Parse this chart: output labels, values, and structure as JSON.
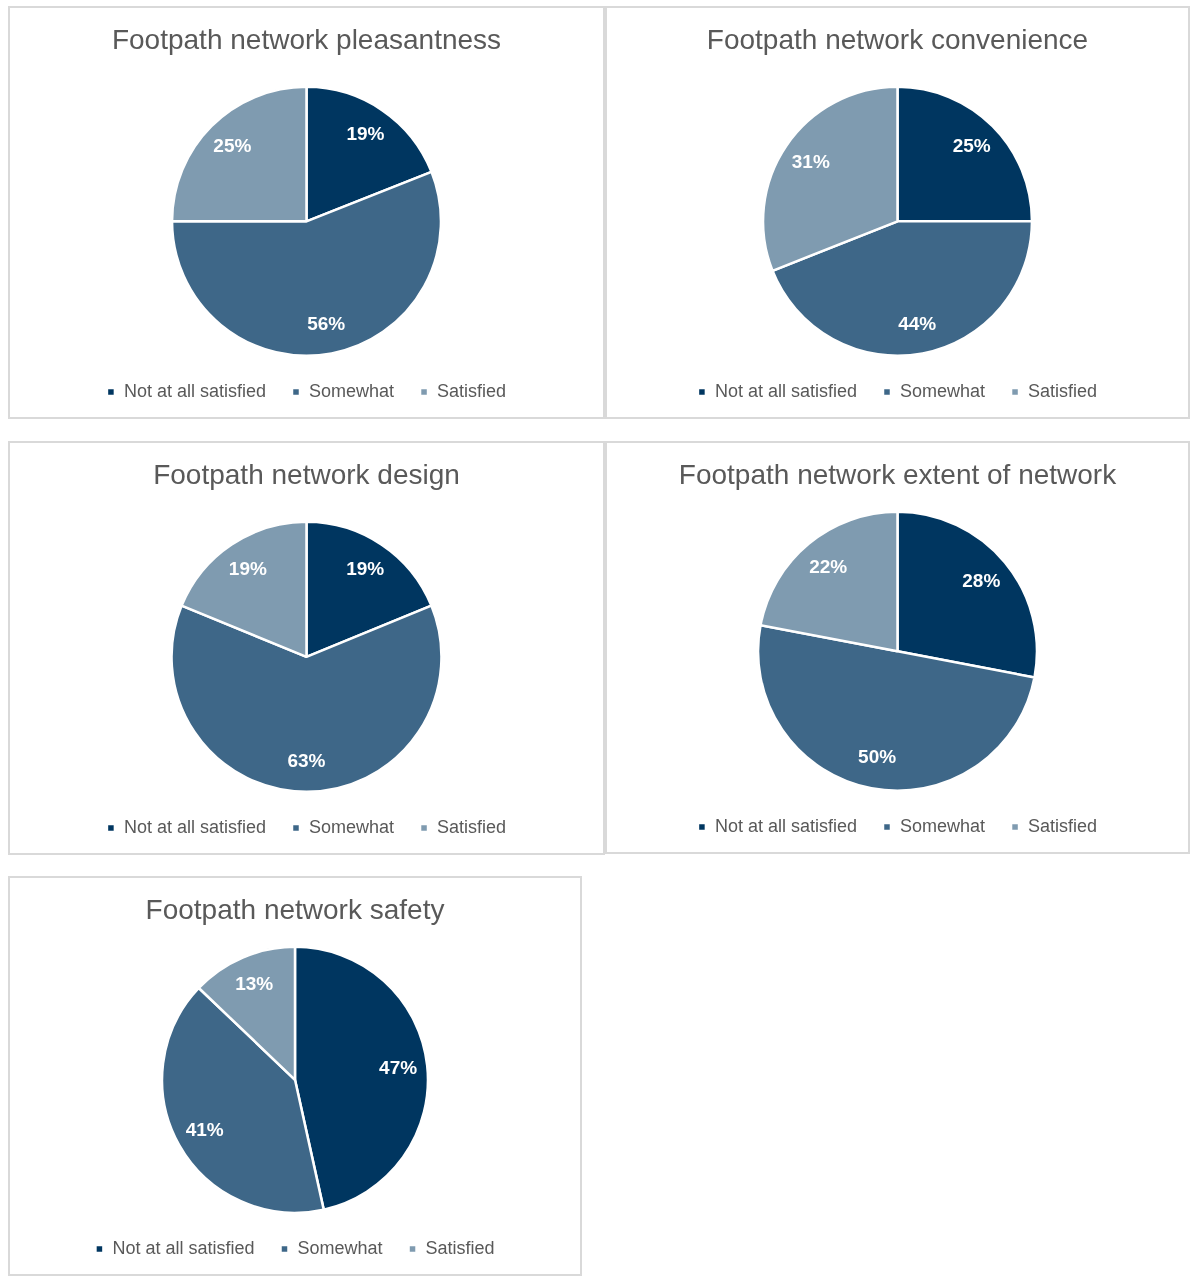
{
  "chart_data": [
    {
      "type": "pie",
      "title": "Footpath network pleasantness",
      "categories": [
        "Not at all satisfied",
        "Somewhat",
        "Satisfied"
      ],
      "values": [
        19,
        56,
        25
      ],
      "value_labels": [
        "19%",
        "56%",
        "25%"
      ],
      "colors": [
        "#003660",
        "#3e6788",
        "#7f9bb0"
      ],
      "legend": "bottom"
    },
    {
      "type": "pie",
      "title": "Footpath network convenience",
      "categories": [
        "Not at all satisfied",
        "Somewhat",
        "Satisfied"
      ],
      "values": [
        25,
        44,
        31
      ],
      "value_labels": [
        "25%",
        "44%",
        "31%"
      ],
      "colors": [
        "#003660",
        "#3e6788",
        "#7f9bb0"
      ],
      "legend": "bottom"
    },
    {
      "type": "pie",
      "title": "Footpath network design",
      "categories": [
        "Not at all satisfied",
        "Somewhat",
        "Satisfied"
      ],
      "values": [
        19,
        63,
        19
      ],
      "value_labels": [
        "19%",
        "63%",
        "19%"
      ],
      "colors": [
        "#003660",
        "#3e6788",
        "#7f9bb0"
      ],
      "legend": "bottom"
    },
    {
      "type": "pie",
      "title": "Footpath network extent of network",
      "categories": [
        "Not at all satisfied",
        "Somewhat",
        "Satisfied"
      ],
      "values": [
        28,
        50,
        22
      ],
      "value_labels": [
        "28%",
        "50%",
        "22%"
      ],
      "colors": [
        "#003660",
        "#3e6788",
        "#7f9bb0"
      ],
      "legend": "bottom"
    },
    {
      "type": "pie",
      "title": "Footpath network safety",
      "categories": [
        "Not at all satisfied",
        "Somewhat",
        "Satisfied"
      ],
      "values": [
        47,
        41,
        13
      ],
      "value_labels": [
        "47%",
        "41%",
        "13%"
      ],
      "colors": [
        "#003660",
        "#3e6788",
        "#7f9bb0"
      ],
      "legend": "bottom"
    }
  ]
}
